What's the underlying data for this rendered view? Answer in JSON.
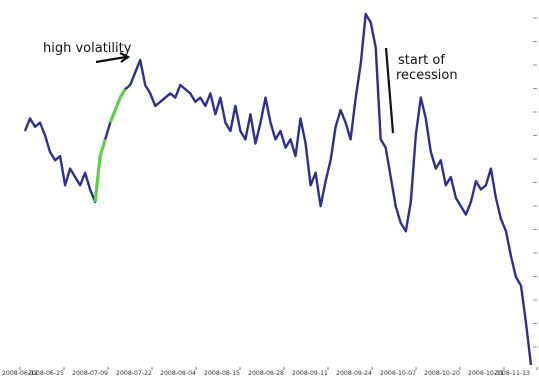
{
  "chart_data": {
    "type": "line",
    "title": "",
    "xlabel": "",
    "ylabel": "",
    "x_tick_labels": [
      "2008-06-12",
      "2008-06-25",
      "2008-07-09",
      "2008-07-22",
      "2008-08-04",
      "2008-08-15",
      "2008-08-28",
      "2008-09-11",
      "2008-09-24",
      "2008-10-07",
      "2008-10-20",
      "2008-10-31",
      "2008-11-13"
    ],
    "y_tick_labels": [],
    "grid": false,
    "legend": "none",
    "annotations": [
      {
        "id": "high-volatility",
        "text": "high volatility"
      },
      {
        "id": "start-of-recession",
        "lines": [
          "start of",
          "recession"
        ]
      }
    ],
    "colors": {
      "line": "#2e2f8f",
      "highlight": "#5fcf4a",
      "marker": "#111111"
    },
    "series": [
      {
        "values": [
          62,
          65,
          63,
          64,
          61,
          57,
          55,
          56,
          49,
          53,
          51,
          49,
          52,
          48,
          45,
          56,
          60,
          64,
          67,
          70,
          72,
          73,
          76,
          79,
          73,
          71,
          68,
          69,
          70,
          71,
          70,
          73,
          72,
          71,
          69,
          70,
          68,
          71,
          66,
          70,
          64,
          62,
          68,
          62,
          60,
          66,
          59,
          64,
          70,
          64,
          60,
          62,
          58,
          60,
          56,
          65,
          59,
          49,
          52,
          44,
          50,
          55,
          63,
          67,
          64,
          60,
          70,
          78,
          90,
          88,
          82,
          60,
          58,
          51,
          44,
          40,
          38,
          45,
          61,
          70,
          65,
          57,
          53,
          55,
          49,
          51,
          46,
          44,
          42,
          45,
          50,
          48,
          49,
          53,
          46,
          41,
          38,
          32,
          27,
          25,
          16,
          6
        ],
        "highlight_segments": [
          [
            14,
            16
          ],
          [
            17,
            20
          ]
        ]
      }
    ]
  }
}
